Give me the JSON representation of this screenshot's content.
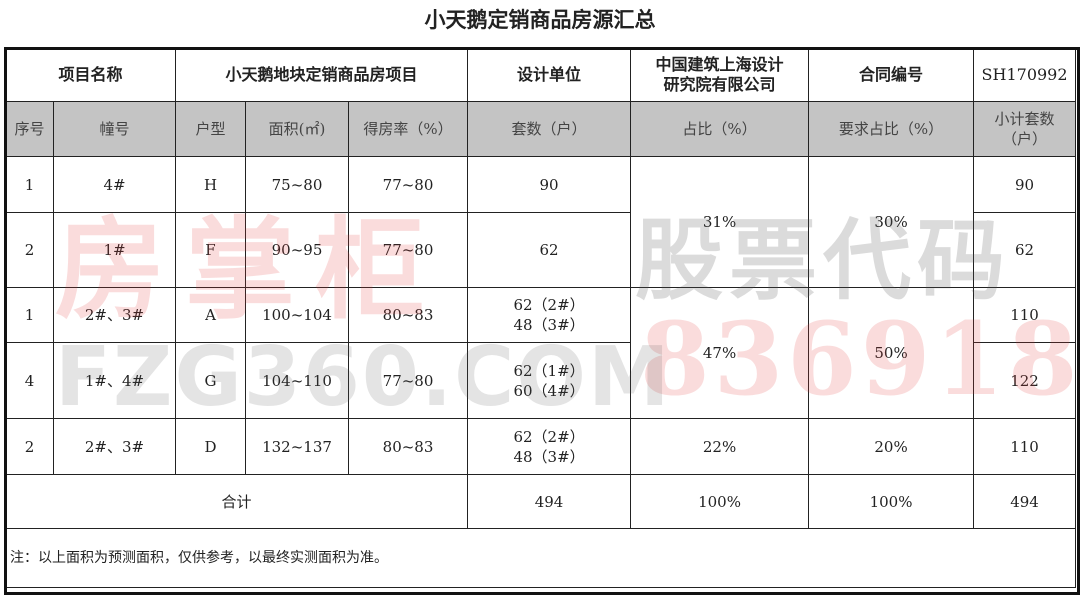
{
  "title": "小天鹅定销商品房源汇总",
  "header": {
    "project_name_label": "项目名称",
    "project_name": "小天鹅地块定销商品房项目",
    "design_unit_label": "设计单位",
    "design_unit": "中国建筑上海设计研究院有限公司",
    "contract_label": "合同编号",
    "contract_no": "SH170992"
  },
  "columns": [
    "序号",
    "幢号",
    "户型",
    "面积(㎡)",
    "得房率（%）",
    "套数（户）",
    "占比（%）",
    "要求占比（%）",
    "小计套数（户）"
  ],
  "rows": [
    {
      "seq": "1",
      "building": "4#",
      "type": "H",
      "area": "75~80",
      "rate": "77~80",
      "units": "90",
      "subtotal": "90"
    },
    {
      "seq": "2",
      "building": "1#",
      "type": "F",
      "area": "90~95",
      "rate": "77~80",
      "units": "62",
      "subtotal": "62"
    },
    {
      "seq": "1",
      "building": "2#、3#",
      "type": "A",
      "area": "100~104",
      "rate": "80~83",
      "units": "62（2#）\n48（3#）",
      "subtotal": "110"
    },
    {
      "seq": "4",
      "building": "1#、4#",
      "type": "G",
      "area": "104~110",
      "rate": "77~80",
      "units": "62（1#）\n60（4#）",
      "subtotal": "122"
    },
    {
      "seq": "2",
      "building": "2#、3#",
      "type": "D",
      "area": "132~137",
      "rate": "80~83",
      "units": "62（2#）\n48（3#）",
      "subtotal": "110"
    }
  ],
  "groups": [
    {
      "share": "31%",
      "required": "30%"
    },
    {
      "share": "47%",
      "required": "50%"
    },
    {
      "share": "22%",
      "required": "20%"
    }
  ],
  "total": {
    "label": "合计",
    "units": "494",
    "share": "100%",
    "required": "100%",
    "subtotal": "494"
  },
  "note": "注：以上面积为预测面积，仅供参考，以最终实测面积为准。",
  "watermark": {
    "brand": "房掌柜",
    "stock_label": "股票代码",
    "stock_code": "836918",
    "site": "FZG360.COM"
  }
}
